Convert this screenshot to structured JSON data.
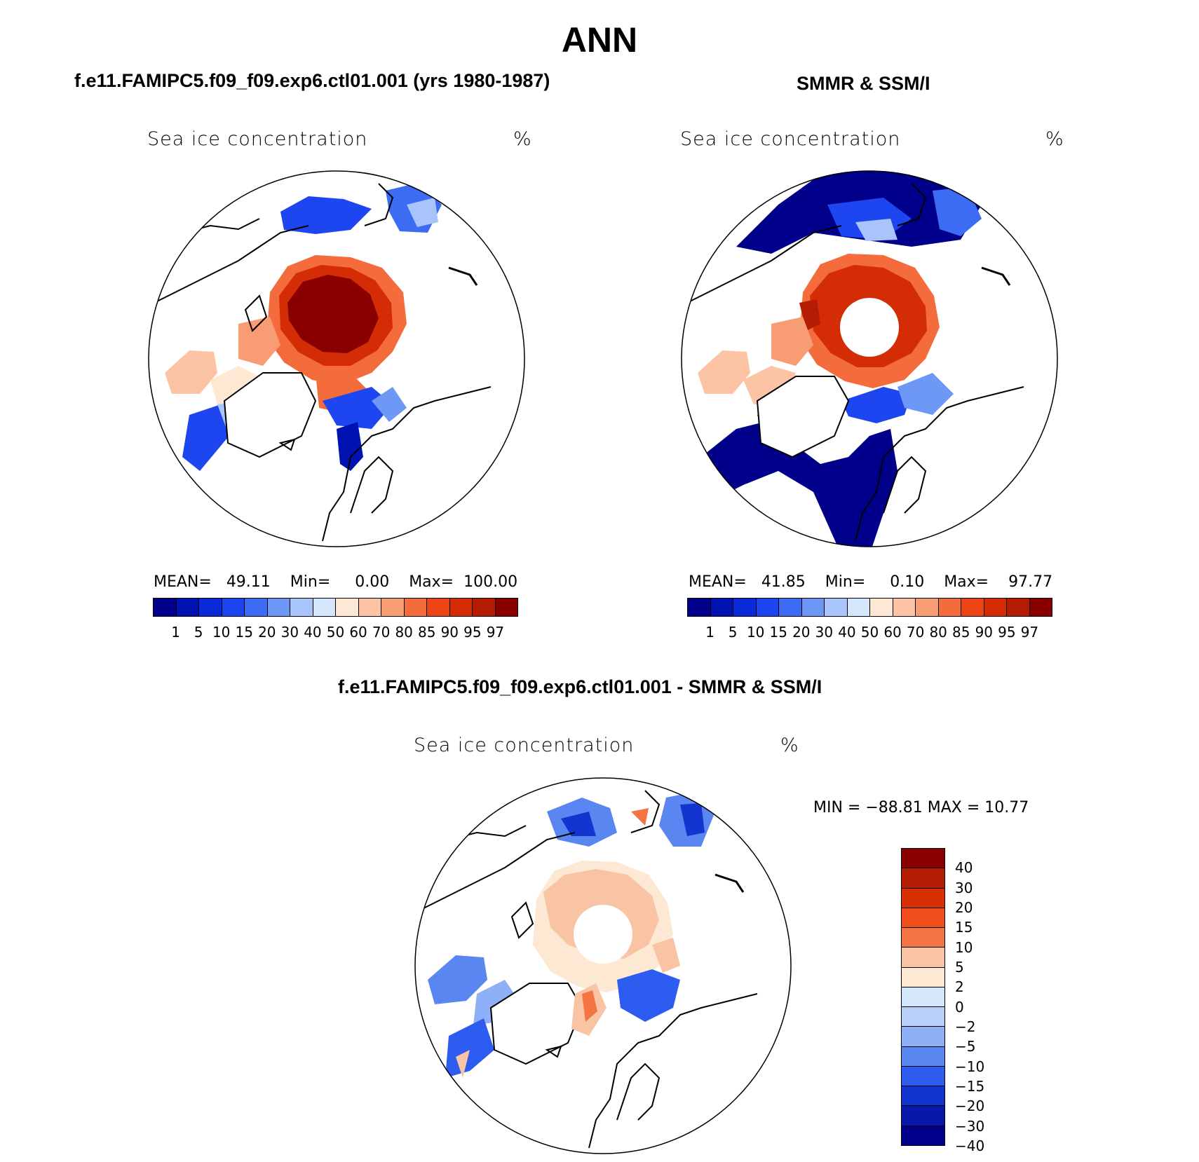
{
  "title": "ANN",
  "panels": [
    {
      "title": "f.e11.FAMIPC5.f09_f09.exp6.ctl01.001 (yrs 1980-1987)",
      "variable": "Sea ice concentration",
      "units": "%",
      "stats": {
        "mean_label": "MEAN=",
        "mean": "49.11",
        "min_label": "Min=",
        "min": "0.00",
        "max_label": "Max=",
        "max": "100.00"
      }
    },
    {
      "title": "SMMR & SSM/I",
      "variable": "Sea ice concentration",
      "units": "%",
      "stats": {
        "mean_label": "MEAN=",
        "mean": "41.85",
        "min_label": "Min=",
        "min": "0.10",
        "max_label": "Max=",
        "max": "97.77"
      }
    },
    {
      "title": "f.e11.FAMIPC5.f09_f09.exp6.ctl01.001 - SMMR & SSM/I",
      "variable": "Sea ice concentration",
      "units": "%",
      "minmax": "MIN = −88.81  MAX =   10.77"
    }
  ],
  "colorbar_conc": {
    "colors": [
      "#00008a",
      "#0012b0",
      "#0a2ad8",
      "#1e46f0",
      "#3c6cf4",
      "#6e98f6",
      "#a8c4fa",
      "#d4e6fc",
      "#fde8d4",
      "#fcc4a4",
      "#f89c74",
      "#f46c3c",
      "#ec4414",
      "#d42c04",
      "#b41c04",
      "#8a0000"
    ],
    "labels": [
      "1",
      "5",
      "10",
      "15",
      "20",
      "30",
      "40",
      "50",
      "60",
      "70",
      "80",
      "85",
      "90",
      "95",
      "97"
    ]
  },
  "colorbar_diff": {
    "colors": [
      "#8a0000",
      "#b41c04",
      "#d83004",
      "#f04c1c",
      "#f47444",
      "#f8c4a4",
      "#fde8d4",
      "#d4e6fc",
      "#b8d0fa",
      "#8eb0f6",
      "#5a86f2",
      "#2c5cf0",
      "#1434d0",
      "#0818a8",
      "#00008a"
    ],
    "labels": [
      "40",
      "30",
      "20",
      "15",
      "10",
      "5",
      "2",
      "0",
      "−2",
      "−5",
      "−10",
      "−15",
      "−20",
      "−30",
      "−40"
    ]
  }
}
